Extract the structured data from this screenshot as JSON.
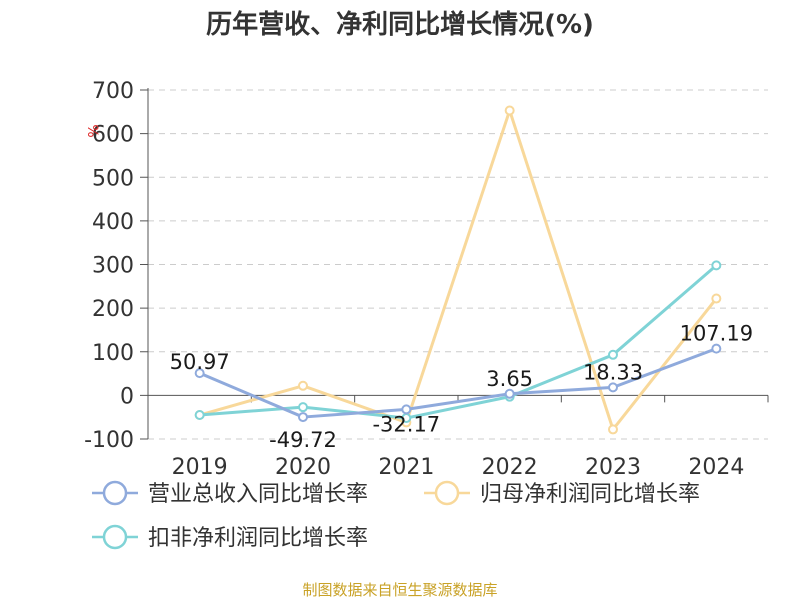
{
  "chart_data": {
    "type": "line",
    "title": "历年营收、净利同比增长情况(%)",
    "ylabel": "%",
    "x": [
      "2019",
      "2020",
      "2021",
      "2022",
      "2023",
      "2024"
    ],
    "ylim": [
      -100,
      700
    ],
    "yticks": [
      700,
      600,
      500,
      400,
      300,
      200,
      100,
      0,
      -100
    ],
    "grid": true,
    "legend_position": "bottom",
    "series": [
      {
        "name": "营业总收入同比增长率",
        "color": "#8faadc",
        "values": [
          50.97,
          -49.72,
          -32.17,
          3.65,
          18.33,
          107.19
        ],
        "labels": [
          "50.97",
          "-49.72",
          "-32.17",
          "3.65",
          "18.33",
          "107.19"
        ]
      },
      {
        "name": "归母净利润同比增长率",
        "color": "#f8d89a",
        "values": [
          -45,
          22,
          -62,
          653,
          -78,
          222
        ]
      },
      {
        "name": "扣非净利润同比增长率",
        "color": "#7fd3d6",
        "values": [
          -45,
          -27,
          -52,
          -3,
          93,
          298
        ]
      }
    ]
  },
  "footer": "制图数据来自恒生聚源数据库"
}
